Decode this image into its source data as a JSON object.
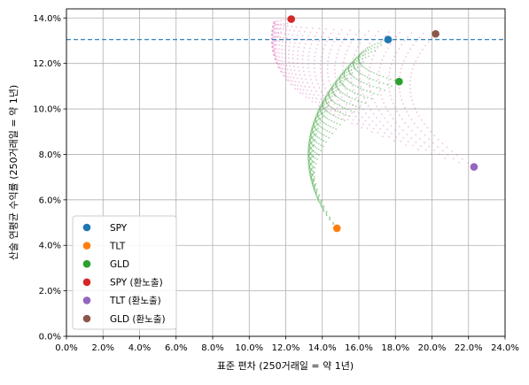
{
  "chart_data": {
    "type": "scatter",
    "xlabel": "표준 편차 (250거래일 = 약 1년)",
    "ylabel": "산술 연평균 수익률 (250거래일 = 약 1년)",
    "xlim": [
      0,
      24
    ],
    "ylim": [
      0,
      14.4
    ],
    "x_ticks": [
      0,
      2,
      4,
      6,
      8,
      10,
      12,
      14,
      16,
      18,
      20,
      22,
      24
    ],
    "y_ticks": [
      0,
      2,
      4,
      6,
      8,
      10,
      12,
      14
    ],
    "x_tick_labels": [
      "0.0%",
      "2.0%",
      "4.0%",
      "6.0%",
      "8.0%",
      "10.0%",
      "12.0%",
      "14.0%",
      "16.0%",
      "18.0%",
      "20.0%",
      "22.0%",
      "24.0%"
    ],
    "y_tick_labels": [
      "0.0%",
      "2.0%",
      "4.0%",
      "6.0%",
      "8.0%",
      "10.0%",
      "12.0%",
      "14.0%"
    ],
    "grid": true,
    "legend_position": "lower-left",
    "reference_line": {
      "y": 13.05,
      "style": "dashed",
      "color": "#1f77b4"
    },
    "assets": [
      {
        "name": "SPY",
        "color": "#1f77b4",
        "x": 17.6,
        "y": 13.05
      },
      {
        "name": "TLT",
        "color": "#ff7f0e",
        "x": 14.8,
        "y": 4.75
      },
      {
        "name": "GLD",
        "color": "#2ca02c",
        "x": 18.2,
        "y": 11.2
      },
      {
        "name": "SPY (환노출)",
        "color": "#d62728",
        "x": 12.3,
        "y": 13.95
      },
      {
        "name": "TLT (환노출)",
        "color": "#9467bd",
        "x": 22.3,
        "y": 7.45
      },
      {
        "name": "GLD (환노출)",
        "color": "#8c564b",
        "x": 20.2,
        "y": 13.3
      }
    ],
    "portfolio_clouds": [
      {
        "color": "#2ca02c",
        "vertices": [
          0,
          1,
          2
        ]
      },
      {
        "color": "#e377c2",
        "vertices": [
          3,
          4,
          5
        ]
      }
    ]
  }
}
